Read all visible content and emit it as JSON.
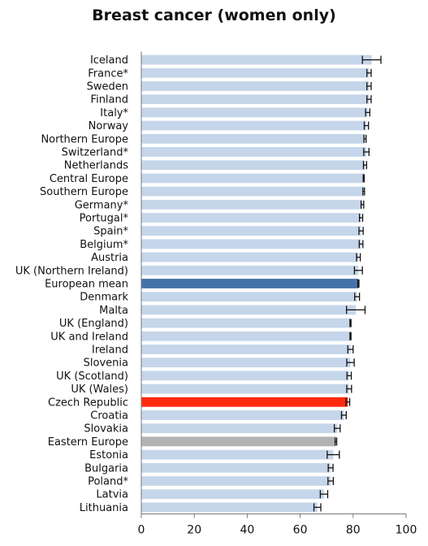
{
  "chart_data": {
    "type": "bar",
    "orientation": "horizontal",
    "title": "Breast cancer (women only)",
    "xlabel": "",
    "ylabel": "",
    "xlim": [
      0,
      100
    ],
    "x_ticks": [
      "0",
      "20",
      "40",
      "60",
      "80",
      "100"
    ],
    "grid": false,
    "colors": {
      "default": "#c5d6ea",
      "European mean": "#4472a8",
      "Czech Republic": "#ff2b0f",
      "Eastern Europe": "#b3b3b3",
      "error_bar": "#111111"
    },
    "categories": [
      "Iceland",
      "France*",
      "Sweden",
      "Finland",
      "Italy*",
      "Norway",
      "Northern Europe",
      "Switzerland*",
      "Netherlands",
      "Central Europe",
      "Southern Europe",
      "Germany*",
      "Portugal*",
      "Spain*",
      "Belgium*",
      "Austria",
      "UK (Northern Ireland)",
      "European mean",
      "Denmark",
      "Malta",
      "UK (England)",
      "UK and Ireland",
      "Ireland",
      "Slovenia",
      "UK (Scotland)",
      "UK (Wales)",
      "Czech Republic",
      "Croatia",
      "Slovakia",
      "Eastern Europe",
      "Estonia",
      "Bulgaria",
      "Poland*",
      "Latvia",
      "Lithuania"
    ],
    "values": [
      87,
      86,
      86,
      86,
      85.5,
      85,
      84.5,
      85,
      84.5,
      84,
      84,
      83.5,
      83,
      83,
      83,
      82,
      82,
      82,
      81.5,
      81,
      79,
      79,
      79,
      79,
      78.5,
      78.5,
      78,
      76.5,
      74,
      73.5,
      72.5,
      71.5,
      71.5,
      69,
      66.5
    ],
    "ci_low": [
      83.5,
      85.2,
      85.2,
      85.2,
      84.7,
      84.2,
      84.1,
      84.0,
      83.9,
      83.8,
      83.7,
      83.0,
      82.4,
      82.2,
      82.3,
      81.3,
      80.5,
      81.8,
      80.6,
      77.5,
      78.8,
      78.8,
      78.0,
      77.6,
      77.7,
      77.6,
      77.3,
      75.6,
      72.9,
      73.2,
      70.2,
      70.6,
      70.5,
      67.6,
      65.2
    ],
    "ci_high": [
      90.5,
      86.8,
      86.8,
      86.8,
      86.3,
      85.8,
      84.9,
      86.0,
      85.1,
      84.2,
      84.3,
      84.0,
      83.6,
      83.8,
      83.7,
      82.7,
      83.5,
      82.2,
      82.4,
      84.5,
      79.2,
      79.2,
      80.0,
      80.4,
      79.3,
      79.4,
      78.7,
      77.4,
      75.1,
      73.8,
      74.8,
      72.4,
      72.5,
      70.4,
      67.8
    ]
  }
}
